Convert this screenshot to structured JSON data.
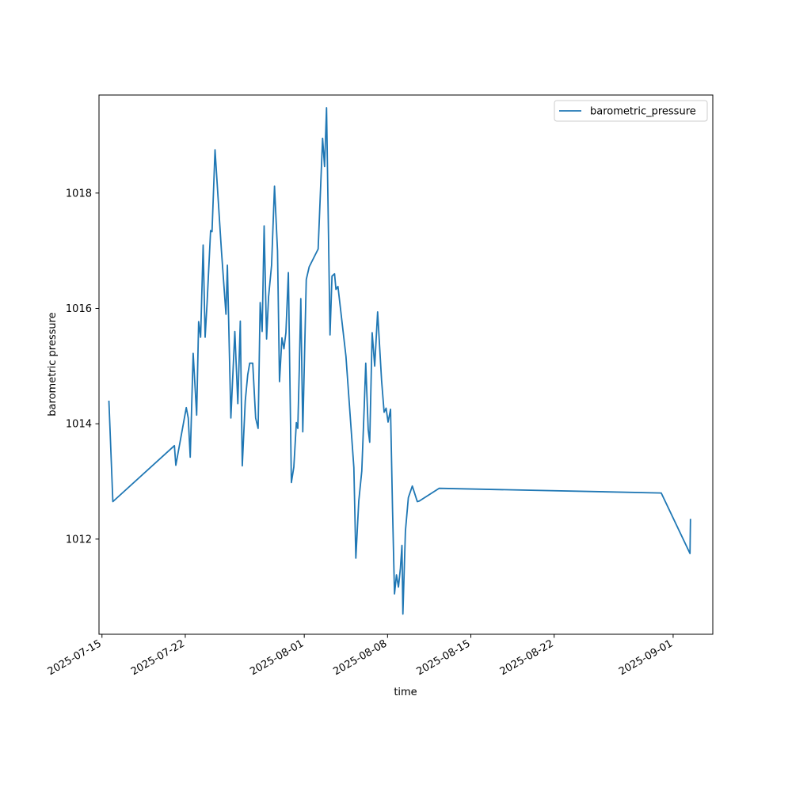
{
  "chart_data": {
    "type": "line",
    "title": "",
    "xlabel": "time",
    "ylabel": "barometric pressure",
    "x_axis_kind": "date",
    "xlim": [
      "2025-07-14T18:00",
      "2025-09-04T08:00"
    ],
    "ylim": [
      1010.35,
      1019.7
    ],
    "x_ticks": [
      "2025-07-15",
      "2025-07-22",
      "2025-08-01",
      "2025-08-08",
      "2025-08-15",
      "2025-08-22",
      "2025-09-01"
    ],
    "y_ticks": [
      1012,
      1014,
      1016,
      1018
    ],
    "grid": false,
    "legend": {
      "position": "top-right",
      "entries": [
        "barometric_pressure"
      ]
    },
    "colors": {
      "series": "#1f77b4",
      "axes": "#000000",
      "background": "#ffffff"
    },
    "series": [
      {
        "name": "barometric_pressure",
        "x": [
          "2025-07-15T14:00",
          "2025-07-15T22:00",
          "2025-07-21T02:00",
          "2025-07-21T05:00",
          "2025-07-22T02:00",
          "2025-07-22T06:00",
          "2025-07-22T10:00",
          "2025-07-22T16:00",
          "2025-07-22T23:00",
          "2025-07-23T03:00",
          "2025-07-23T07:00",
          "2025-07-23T12:00",
          "2025-07-23T16:00",
          "2025-07-23T20:00",
          "2025-07-24T03:00",
          "2025-07-24T06:00",
          "2025-07-24T12:00",
          "2025-07-25T01:00",
          "2025-07-25T10:00",
          "2025-07-25T13:00",
          "2025-07-25T20:00",
          "2025-07-26T04:00",
          "2025-07-26T10:00",
          "2025-07-26T15:00",
          "2025-07-26T19:00",
          "2025-07-27T01:00",
          "2025-07-27T06:00",
          "2025-07-27T10:00",
          "2025-07-27T16:00",
          "2025-07-27T22:00",
          "2025-07-28T03:00",
          "2025-07-28T07:00",
          "2025-07-28T11:00",
          "2025-07-28T15:00",
          "2025-07-28T20:00",
          "2025-07-29T00:00",
          "2025-07-29T06:00",
          "2025-07-29T12:00",
          "2025-07-29T18:00",
          "2025-07-29T22:00",
          "2025-07-30T03:00",
          "2025-07-30T07:00",
          "2025-07-30T11:00",
          "2025-07-30T16:00",
          "2025-07-30T22:00",
          "2025-07-31T03:00",
          "2025-07-31T08:00",
          "2025-07-31T11:00",
          "2025-07-31T14:00",
          "2025-07-31T17:00",
          "2025-07-31T21:00",
          "2025-08-01T04:00",
          "2025-08-01T10:00",
          "2025-08-02T04:00",
          "2025-08-02T13:00",
          "2025-08-02T17:00",
          "2025-08-02T21:00",
          "2025-08-03T04:00",
          "2025-08-03T08:00",
          "2025-08-03T13:00",
          "2025-08-03T16:00",
          "2025-08-03T20:00",
          "2025-08-04T12:00",
          "2025-08-05T04:00",
          "2025-08-05T08:00",
          "2025-08-05T14:00",
          "2025-08-05T20:00",
          "2025-08-06T01:00",
          "2025-08-06T04:00",
          "2025-08-06T09:00",
          "2025-08-06T12:00",
          "2025-08-06T17:00",
          "2025-08-06T22:00",
          "2025-08-07T04:00",
          "2025-08-07T12:00",
          "2025-08-07T17:00",
          "2025-08-07T21:00",
          "2025-08-08T01:00",
          "2025-08-08T06:00",
          "2025-08-08T10:00",
          "2025-08-08T14:00",
          "2025-08-08T18:00",
          "2025-08-08T22:00",
          "2025-08-09T02:00",
          "2025-08-09T05:00",
          "2025-08-09T07:00",
          "2025-08-09T12:00",
          "2025-08-09T18:00",
          "2025-08-10T02:00",
          "2025-08-10T12:00",
          "2025-08-10T16:00",
          "2025-08-12T08:00",
          "2025-08-31T00:00",
          "2025-09-02T10:00",
          "2025-09-02T11:00"
        ],
        "values": [
          1014.4,
          1012.65,
          1013.62,
          1013.28,
          1014.28,
          1014.1,
          1013.42,
          1015.22,
          1014.15,
          1015.77,
          1015.5,
          1017.1,
          1015.5,
          1016.1,
          1017.35,
          1017.33,
          1018.75,
          1017.0,
          1015.9,
          1016.75,
          1014.1,
          1015.6,
          1014.35,
          1015.78,
          1013.27,
          1014.4,
          1014.85,
          1015.05,
          1015.05,
          1014.1,
          1013.92,
          1016.1,
          1015.6,
          1017.43,
          1015.47,
          1016.2,
          1016.75,
          1018.12,
          1017.0,
          1014.73,
          1015.49,
          1015.3,
          1015.58,
          1016.62,
          1012.98,
          1013.25,
          1014.02,
          1013.92,
          1014.95,
          1016.17,
          1013.86,
          1016.5,
          1016.72,
          1017.03,
          1018.95,
          1018.46,
          1019.48,
          1015.54,
          1016.56,
          1016.6,
          1016.33,
          1016.38,
          1015.17,
          1013.24,
          1011.67,
          1012.66,
          1013.18,
          1014.3,
          1015.05,
          1013.9,
          1013.68,
          1015.58,
          1015.0,
          1015.94,
          1014.75,
          1014.2,
          1014.27,
          1014.03,
          1014.25,
          1012.53,
          1011.05,
          1011.38,
          1011.17,
          1011.5,
          1011.89,
          1010.7,
          1012.14,
          1012.72,
          1012.92,
          1012.65,
          1012.66,
          1012.88,
          1012.8,
          1011.75,
          1012.35
        ]
      }
    ]
  }
}
